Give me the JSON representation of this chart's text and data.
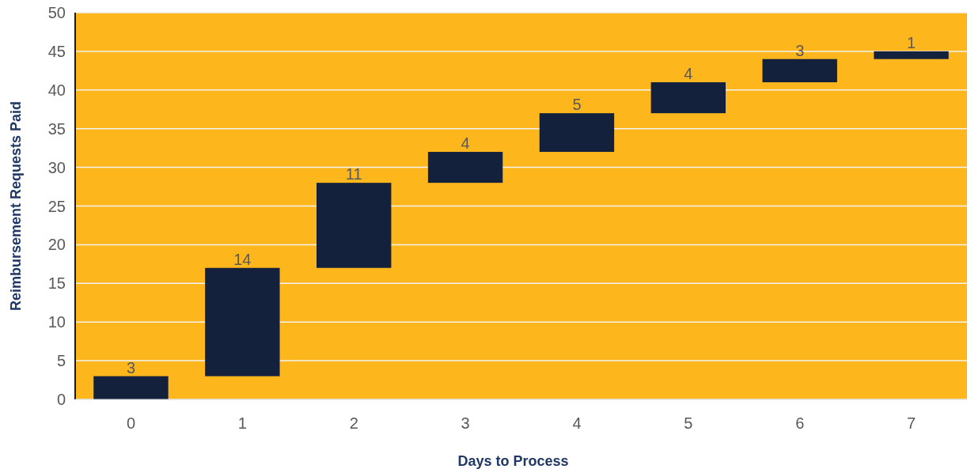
{
  "chart_data": {
    "type": "bar",
    "xlabel": "Days to Process",
    "ylabel": "Reimbursement Requests Paid",
    "categories": [
      "0",
      "1",
      "2",
      "3",
      "4",
      "5",
      "6",
      "7"
    ],
    "values": [
      3,
      14,
      11,
      4,
      5,
      4,
      3,
      1
    ],
    "base": [
      0,
      3,
      17,
      28,
      32,
      37,
      41,
      44
    ],
    "color": "#14213d",
    "ylim": [
      0,
      50
    ],
    "yticks": [
      0,
      5,
      10,
      15,
      20,
      25,
      30,
      35,
      40,
      45,
      50
    ],
    "grid": "y",
    "data_labels": true
  }
}
